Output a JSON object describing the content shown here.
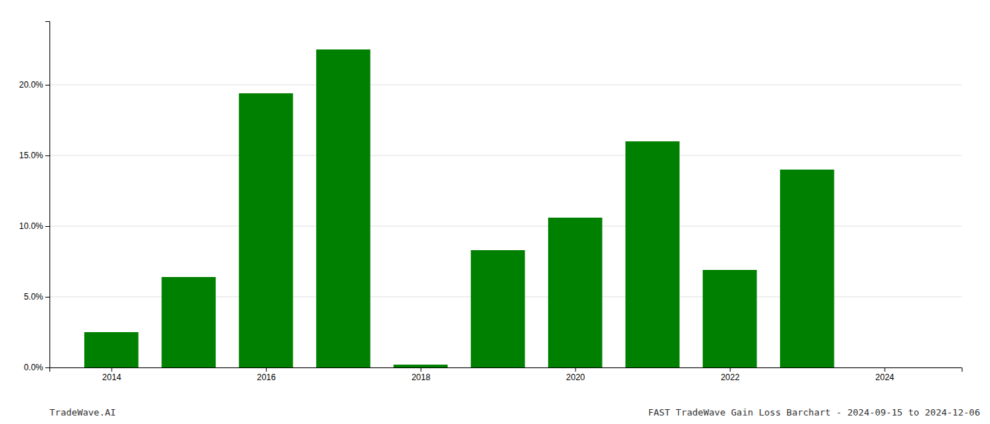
{
  "chart_data": {
    "type": "bar",
    "x": [
      2014,
      2015,
      2016,
      2017,
      2018,
      2019,
      2020,
      2021,
      2022,
      2023,
      2024
    ],
    "values": [
      0.025,
      0.064,
      0.194,
      0.225,
      0.002,
      0.083,
      0.106,
      0.16,
      0.069,
      0.14,
      0.0
    ],
    "color": "#008000",
    "xlim": [
      2013.2,
      2025.0
    ],
    "xticks": [
      2014,
      2016,
      2018,
      2020,
      2022,
      2024
    ],
    "ylim": [
      0,
      0.245
    ],
    "yticks": [
      {
        "value": 0.0,
        "label": "0.0%"
      },
      {
        "value": 0.05,
        "label": "5.0%"
      },
      {
        "value": 0.1,
        "label": "10.0%"
      },
      {
        "value": 0.15,
        "label": "15.0%"
      },
      {
        "value": 0.2,
        "label": "20.0%"
      }
    ],
    "grid": true,
    "annotations": [
      "TradeWave.AI",
      "FAST TradeWave Gain Loss Barchart - 2024-09-15 to 2024-12-06"
    ]
  }
}
